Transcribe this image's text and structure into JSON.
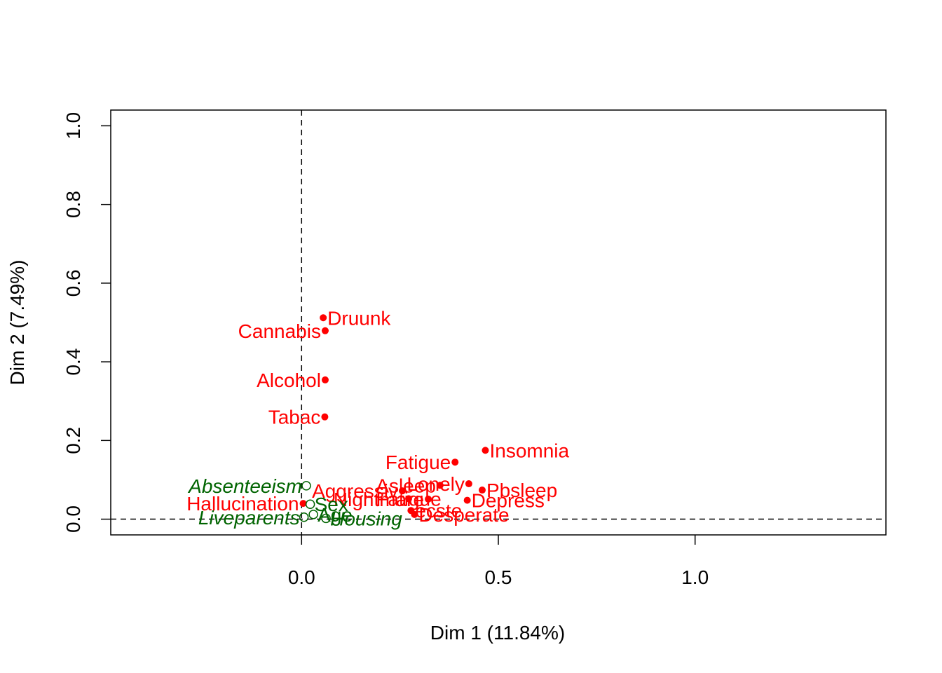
{
  "chart_data": {
    "type": "scatter",
    "title": "",
    "xlabel": "Dim 1 (11.84%)",
    "ylabel": "Dim 2 (7.49%)",
    "xlim": [
      -0.485,
      1.485
    ],
    "ylim": [
      -0.04,
      1.04
    ],
    "xticks": [
      0.0,
      0.5,
      1.0
    ],
    "xtick_labels": [
      "0.0",
      "0.5",
      "1.0"
    ],
    "yticks": [
      0.0,
      0.2,
      0.4,
      0.6,
      0.8,
      1.0
    ],
    "ytick_labels": [
      "0.0",
      "0.2",
      "0.4",
      "0.6",
      "0.8",
      "1.0"
    ],
    "reference_lines": {
      "x": 0,
      "y": 0,
      "style": "dashed"
    },
    "grid": false,
    "legend": "none",
    "colors": {
      "active": "#ff0000",
      "supplementary": "#006400"
    },
    "series": [
      {
        "role": "active",
        "marker": "filled-circle",
        "points": [
          {
            "label": "Druunk",
            "x": 0.055,
            "y": 0.512,
            "anchor": "start"
          },
          {
            "label": "Cannabis",
            "x": 0.06,
            "y": 0.479,
            "anchor": "end"
          },
          {
            "label": "Alcohol",
            "x": 0.06,
            "y": 0.354,
            "anchor": "end"
          },
          {
            "label": "Tabac",
            "x": 0.059,
            "y": 0.26,
            "anchor": "end"
          },
          {
            "label": "Fatigue",
            "x": 0.39,
            "y": 0.145,
            "anchor": "end"
          },
          {
            "label": "Insomnia",
            "x": 0.467,
            "y": 0.175,
            "anchor": "start"
          },
          {
            "label": "Asleep",
            "x": 0.352,
            "y": 0.086,
            "anchor": "end"
          },
          {
            "label": "Pbsleep",
            "x": 0.459,
            "y": 0.074,
            "anchor": "start"
          },
          {
            "label": "Aggressiv",
            "x": 0.256,
            "y": 0.072,
            "anchor": "end"
          },
          {
            "label": "Lonely",
            "x": 0.425,
            "y": 0.09,
            "anchor": "end"
          },
          {
            "label": "Nightmare",
            "x": 0.322,
            "y": 0.051,
            "anchor": "end"
          },
          {
            "label": "Depress",
            "x": 0.421,
            "y": 0.048,
            "anchor": "start"
          },
          {
            "label": "Hallucination",
            "x": 0.004,
            "y": 0.04,
            "anchor": "end"
          },
          {
            "label": "Fatigue",
            "x": 0.272,
            "y": 0.052,
            "anchor": "middle"
          },
          {
            "label": "ecste",
            "x": 0.278,
            "y": 0.022,
            "anchor": "start"
          },
          {
            "label": "Desperate",
            "x": 0.287,
            "y": 0.012,
            "anchor": "start"
          }
        ]
      },
      {
        "role": "supplementary",
        "marker": "open-circle",
        "italic": true,
        "points": [
          {
            "label": "Absenteeism",
            "x": 0.012,
            "y": 0.085,
            "anchor": "end",
            "italic": true
          },
          {
            "label": "Sex",
            "x": 0.022,
            "y": 0.038,
            "anchor": "start",
            "italic": false
          },
          {
            "label": "Liveparents",
            "x": 0.006,
            "y": 0.005,
            "anchor": "end",
            "italic": true
          },
          {
            "label": "Age",
            "x": 0.03,
            "y": 0.012,
            "anchor": "start",
            "italic": false
          },
          {
            "label": "Housing",
            "x": 0.062,
            "y": 0.002,
            "anchor": "start",
            "italic": true
          }
        ]
      }
    ]
  }
}
